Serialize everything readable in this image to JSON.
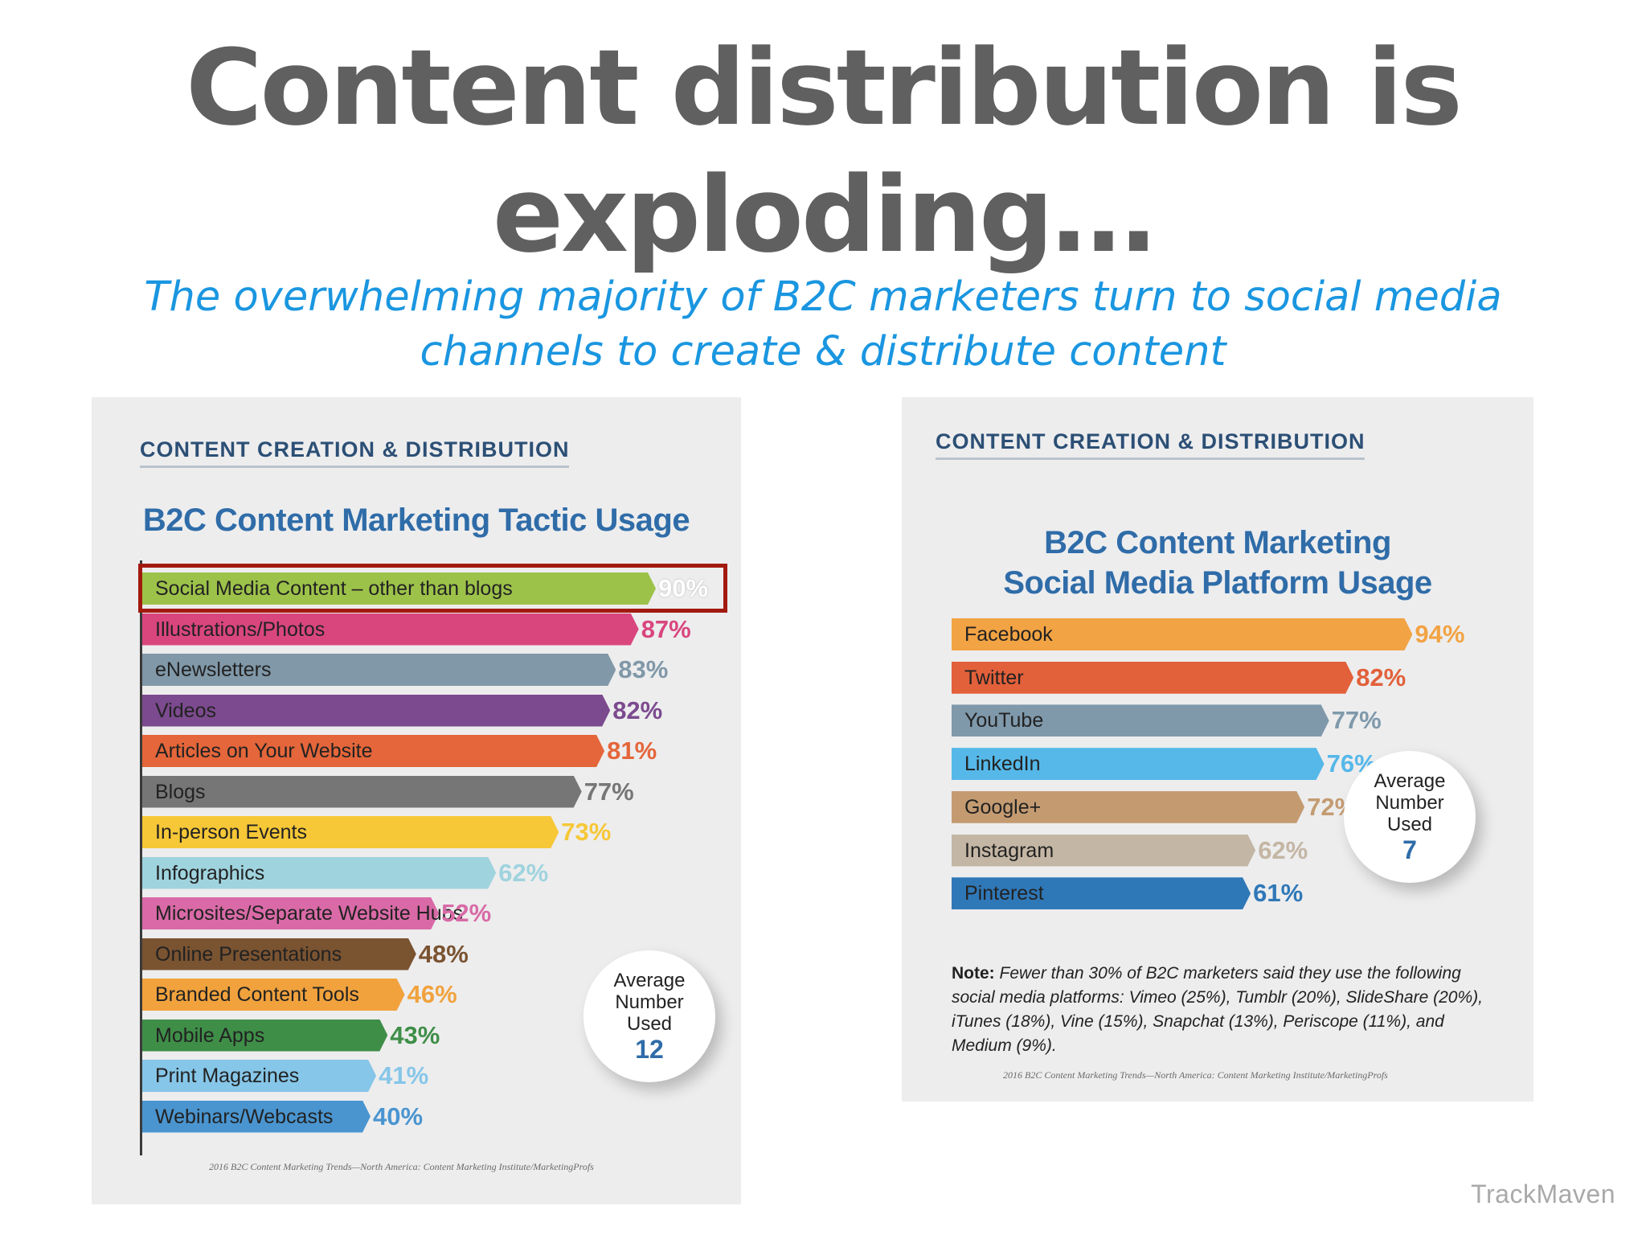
{
  "slide": {
    "title_line1": "Content distribution is",
    "title_line2": "exploding…",
    "subtitle_line1": "The overwhelming majority of B2C marketers turn to social media",
    "subtitle_line2": "channels to create & distribute content",
    "brand": "TrackMaven"
  },
  "chart_data": [
    {
      "type": "bar",
      "orientation": "horizontal",
      "section_label": "CONTENT CREATION & DISTRIBUTION",
      "title": "B2C Content Marketing Tactic Usage",
      "categories": [
        "Social Media Content – other than blogs",
        "Illustrations/Photos",
        "eNewsletters",
        "Videos",
        "Articles on Your Website",
        "Blogs",
        "In-person Events",
        "Infographics",
        "Microsites/Separate Website Hubs",
        "Online Presentations",
        "Branded Content Tools",
        "Mobile Apps",
        "Print Magazines",
        "Webinars/Webcasts"
      ],
      "values": [
        90,
        87,
        83,
        82,
        81,
        77,
        73,
        62,
        52,
        48,
        46,
        43,
        41,
        40
      ],
      "value_labels": [
        "90%",
        "87%",
        "83%",
        "82%",
        "81%",
        "77%",
        "73%",
        "62%",
        "52%",
        "48%",
        "46%",
        "43%",
        "41%",
        "40%"
      ],
      "colors": [
        "#9dc24a",
        "#d9467e",
        "#8098a8",
        "#7c4a8e",
        "#e4663a",
        "#767676",
        "#f6c737",
        "#9fd3de",
        "#d96aa7",
        "#7a5331",
        "#f1a23d",
        "#3f8e48",
        "#86c6e8",
        "#4a95d0"
      ],
      "highlighted_category": "Social Media Content – other than blogs",
      "xlim": [
        0,
        100
      ],
      "average": {
        "label_lines": [
          "Average",
          "Number",
          "Used"
        ],
        "value": "12"
      },
      "source": "2016 B2C Content Marketing Trends—North America: Content Marketing Institute/MarketingProfs"
    },
    {
      "type": "bar",
      "orientation": "horizontal",
      "section_label": "CONTENT CREATION & DISTRIBUTION",
      "title_lines": [
        "B2C Content Marketing",
        "Social Media Platform Usage"
      ],
      "categories": [
        "Facebook",
        "Twitter",
        "YouTube",
        "LinkedIn",
        "Google+",
        "Instagram",
        "Pinterest"
      ],
      "values": [
        94,
        82,
        77,
        76,
        72,
        62,
        61
      ],
      "value_labels": [
        "94%",
        "82%",
        "77%",
        "76%",
        "72%",
        "62%",
        "61%"
      ],
      "colors": [
        "#f2a343",
        "#e2603a",
        "#7f99ab",
        "#55b8e9",
        "#c49b71",
        "#c4b6a4",
        "#2f78b8"
      ],
      "xlim": [
        0,
        100
      ],
      "average": {
        "label_lines": [
          "Average",
          "Number",
          "Used"
        ],
        "value": "7"
      },
      "note_label": "Note:",
      "note_text": " Fewer than 30% of B2C marketers said they use the following social media platforms: Vimeo (25%), Tumblr (20%), SlideShare (20%), iTunes (18%), Vine (15%), Snapchat (13%), Periscope (11%), and Medium (9%).",
      "source": "2016 B2C Content Marketing Trends—North America: Content Marketing Institute/MarketingProfs"
    }
  ]
}
